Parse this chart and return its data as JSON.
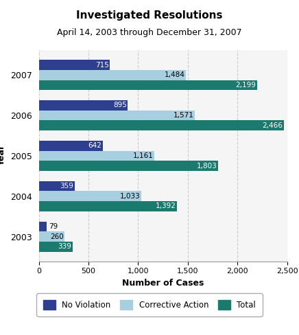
{
  "title_line1": "Investigated Resolutions",
  "title_line2": "April 14, 2003 through December 31, 2007",
  "title_bg_color": "#aee0f5",
  "years": [
    "2003",
    "2004",
    "2005",
    "2006",
    "2007"
  ],
  "no_violation": [
    79,
    359,
    642,
    895,
    715
  ],
  "corrective_action": [
    260,
    1033,
    1161,
    1571,
    1484
  ],
  "total": [
    339,
    1392,
    1803,
    2466,
    2199
  ],
  "color_no_violation": "#2e3f8f",
  "color_corrective_action": "#a8cfe0",
  "color_total": "#1a7a6e",
  "xlabel": "Number of Cases",
  "ylabel": "Year",
  "xlim": [
    0,
    2500
  ],
  "xticks": [
    0,
    500,
    1000,
    1500,
    2000,
    2500
  ],
  "bar_height": 0.25,
  "legend_labels": [
    "No Violation",
    "Corrective Action",
    "Total"
  ],
  "background_color": "#ffffff",
  "plot_bg_color": "#f5f5f5",
  "grid_color": "#cccccc"
}
